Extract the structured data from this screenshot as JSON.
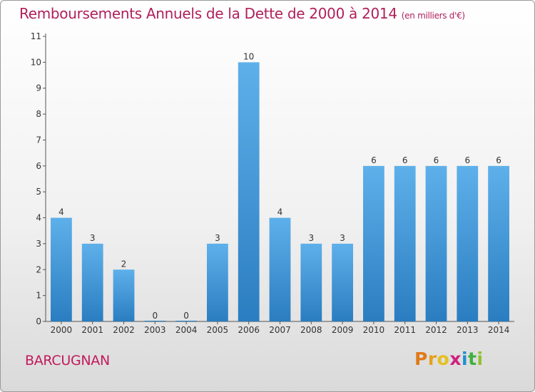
{
  "chart_data": {
    "type": "bar",
    "title": "Remboursements Annuels de la Dette de 2000 à 2014",
    "unit": "(en milliers d'€)",
    "categories": [
      "2000",
      "2001",
      "2002",
      "2003",
      "2004",
      "2005",
      "2006",
      "2007",
      "2008",
      "2009",
      "2010",
      "2011",
      "2012",
      "2013",
      "2014"
    ],
    "values": [
      4,
      3,
      2,
      0,
      0,
      3,
      10,
      4,
      3,
      3,
      6,
      6,
      6,
      6,
      6
    ],
    "ylim": [
      0,
      11
    ],
    "yticks": [
      0,
      1,
      2,
      3,
      4,
      5,
      6,
      7,
      8,
      9,
      10,
      11
    ],
    "grid": false,
    "bar_color_top": "#5eb0ea",
    "bar_color_bottom": "#2a7dc0"
  },
  "footer": {
    "commune": "BARCUGNAN",
    "logo_letters": [
      "P",
      "r",
      "o",
      "x",
      "i",
      "t",
      "i"
    ],
    "logo_colors": [
      "#e07a1a",
      "#e8a020",
      "#e4c020",
      "#d02080",
      "#2090d0",
      "#40b040",
      "#90c030"
    ]
  }
}
